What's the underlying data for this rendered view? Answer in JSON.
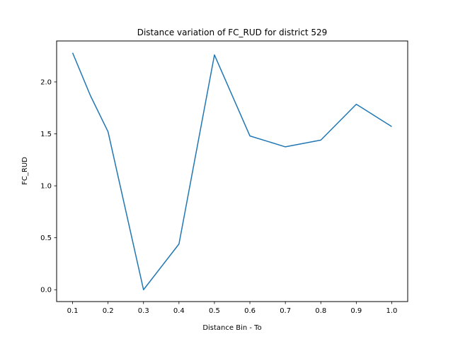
{
  "chart_data": {
    "type": "line",
    "title": "Distance variation of FC_RUD for district 529",
    "xlabel": "Distance Bin - To",
    "ylabel": "FC_RUD",
    "x": [
      0.1,
      0.15,
      0.2,
      0.3,
      0.4,
      0.5,
      0.6,
      0.7,
      0.8,
      0.9,
      1.0
    ],
    "series": [
      {
        "values": [
          2.28,
          1.87,
          1.52,
          0.0,
          0.44,
          2.26,
          1.48,
          1.375,
          1.44,
          1.785,
          1.57
        ]
      }
    ],
    "xlim": [
      0.055,
      1.045
    ],
    "ylim": [
      -0.114,
      2.394
    ],
    "xticks": [
      "0.1",
      "0.2",
      "0.3",
      "0.4",
      "0.5",
      "0.6",
      "0.7",
      "0.8",
      "0.9",
      "1.0"
    ],
    "yticks": [
      "0.0",
      "0.5",
      "1.0",
      "1.5",
      "2.0"
    ],
    "grid": false,
    "line_color": "#1f77b4"
  }
}
